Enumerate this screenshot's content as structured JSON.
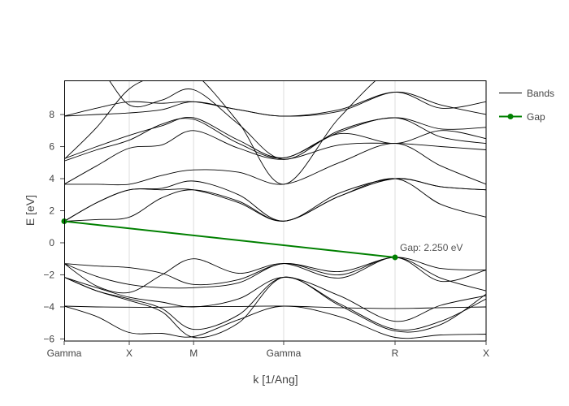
{
  "chart_data": {
    "type": "line",
    "title": "",
    "xlabel": "k [1/Ang]",
    "ylabel": "E [eV]",
    "ylim": [
      -6.13,
      10.13
    ],
    "yticks": [
      -6,
      -4,
      -2,
      0,
      2,
      4,
      6,
      8
    ],
    "grid": "vertical lines at high-symmetry points",
    "high_symmetry_points": [
      {
        "label": "Gamma",
        "k": 0.0
      },
      {
        "label": "X",
        "k": 1.0
      },
      {
        "label": "M",
        "k": 1.99
      },
      {
        "label": "Gamma",
        "k": 3.375
      },
      {
        "label": "R",
        "k": 5.088
      },
      {
        "label": "X",
        "k": 6.488
      }
    ],
    "legend": [
      {
        "name": "Bands",
        "color": "#000000",
        "marker": false
      },
      {
        "name": "Gap",
        "color": "#008000",
        "marker": true
      }
    ],
    "legend_position": "right-top",
    "sample_k": [
      0.0,
      0.5,
      1.0,
      1.5,
      1.99,
      2.68,
      3.375,
      4.23,
      5.088,
      5.79,
      6.488
    ],
    "series": [
      {
        "name": "Bands",
        "values": [
          -3.95,
          -4.0,
          -4.02,
          -4.02,
          -3.98,
          -3.97,
          -3.95,
          -4.05,
          -4.1,
          -4.05,
          -4.0
        ]
      },
      {
        "name": "Bands",
        "values": [
          -3.95,
          -4.6,
          -5.6,
          -5.65,
          -5.85,
          -4.8,
          -3.95,
          -4.6,
          -5.9,
          -5.75,
          -5.7
        ]
      },
      {
        "name": "Bands",
        "values": [
          -2.15,
          -3.0,
          -3.6,
          -4.3,
          -5.9,
          -5.0,
          -2.15,
          -3.9,
          -5.5,
          -5.1,
          -3.2
        ]
      },
      {
        "name": "Bands",
        "values": [
          -2.15,
          -3.0,
          -3.5,
          -4.1,
          -5.4,
          -4.5,
          -2.15,
          -3.8,
          -5.4,
          -4.9,
          -3.5
        ]
      },
      {
        "name": "Bands",
        "values": [
          -2.15,
          -2.8,
          -3.4,
          -3.7,
          -4.0,
          -3.5,
          -2.15,
          -3.3,
          -4.9,
          -3.9,
          -3.3
        ]
      },
      {
        "name": "Bands",
        "values": [
          -1.3,
          -2.7,
          -3.1,
          -2.0,
          -1.0,
          -1.9,
          -1.3,
          -2.2,
          -0.91,
          -2.4,
          -1.7
        ]
      },
      {
        "name": "Bands",
        "values": [
          -1.3,
          -1.45,
          -1.55,
          -1.9,
          -2.6,
          -2.3,
          -1.3,
          -1.8,
          -0.91,
          -1.6,
          -1.7
        ]
      },
      {
        "name": "Bands",
        "values": [
          -1.3,
          -2.1,
          -2.6,
          -2.8,
          -2.8,
          -2.5,
          -1.3,
          -2.0,
          -0.91,
          -2.2,
          -3.0
        ]
      },
      {
        "name": "Bands",
        "values": [
          1.34,
          1.45,
          1.6,
          2.8,
          3.3,
          2.6,
          1.35,
          2.9,
          4.0,
          2.4,
          1.6
        ]
      },
      {
        "name": "Bands",
        "values": [
          1.34,
          2.5,
          3.3,
          3.3,
          3.3,
          2.5,
          1.35,
          2.9,
          4.0,
          3.5,
          3.3
        ]
      },
      {
        "name": "Bands",
        "values": [
          1.34,
          2.5,
          3.3,
          3.4,
          3.85,
          3.0,
          1.35,
          3.1,
          4.0,
          3.5,
          3.3
        ]
      },
      {
        "name": "Bands",
        "values": [
          3.65,
          3.65,
          3.65,
          4.2,
          4.55,
          4.4,
          3.65,
          5.0,
          6.2,
          4.8,
          3.65
        ]
      },
      {
        "name": "Bands",
        "values": [
          3.65,
          4.8,
          5.9,
          6.1,
          7.0,
          5.9,
          5.2,
          6.1,
          6.2,
          6.0,
          5.8
        ]
      },
      {
        "name": "Bands",
        "values": [
          5.1,
          5.8,
          6.4,
          7.4,
          7.7,
          6.2,
          5.3,
          6.9,
          7.8,
          6.6,
          6.2
        ]
      },
      {
        "name": "Bands",
        "values": [
          5.25,
          6.0,
          6.7,
          7.3,
          7.8,
          6.4,
          5.3,
          6.8,
          6.2,
          7.0,
          6.5
        ]
      },
      {
        "name": "Bands",
        "values": [
          7.9,
          8.0,
          8.1,
          8.3,
          8.8,
          8.3,
          7.9,
          8.2,
          9.4,
          8.6,
          8.0
        ]
      },
      {
        "name": "Bands",
        "values": [
          7.9,
          8.4,
          8.8,
          8.7,
          8.8,
          8.3,
          7.9,
          8.3,
          9.4,
          8.4,
          8.8
        ]
      },
      {
        "name": "Bands",
        "values": [
          5.2,
          7.2,
          9.6,
          10.5,
          11,
          11,
          11,
          11,
          11,
          11,
          11
        ]
      },
      {
        "name": "Bands",
        "values": [
          11,
          11,
          8.6,
          8.9,
          9.55,
          7.4,
          5.2,
          7.0,
          7.8,
          7.1,
          7.2
        ]
      },
      {
        "name": "Bands",
        "values": [
          11,
          11,
          11,
          11,
          10.6,
          7.5,
          3.65,
          7.8,
          11,
          11,
          11
        ]
      },
      {
        "name": "Gap",
        "k": [
          0.0,
          5.088
        ],
        "values": [
          1.34,
          -0.91
        ]
      }
    ],
    "annotations": [
      {
        "text": "Gap: 2.250 eV",
        "k": 5.088,
        "E": -0.91
      }
    ]
  },
  "labels": {
    "xlabel": "k [1/Ang]",
    "ylabel": "E [eV]",
    "legend_bands": "Bands",
    "legend_gap": "Gap",
    "gap_annotation": "Gap: 2.250 eV"
  }
}
